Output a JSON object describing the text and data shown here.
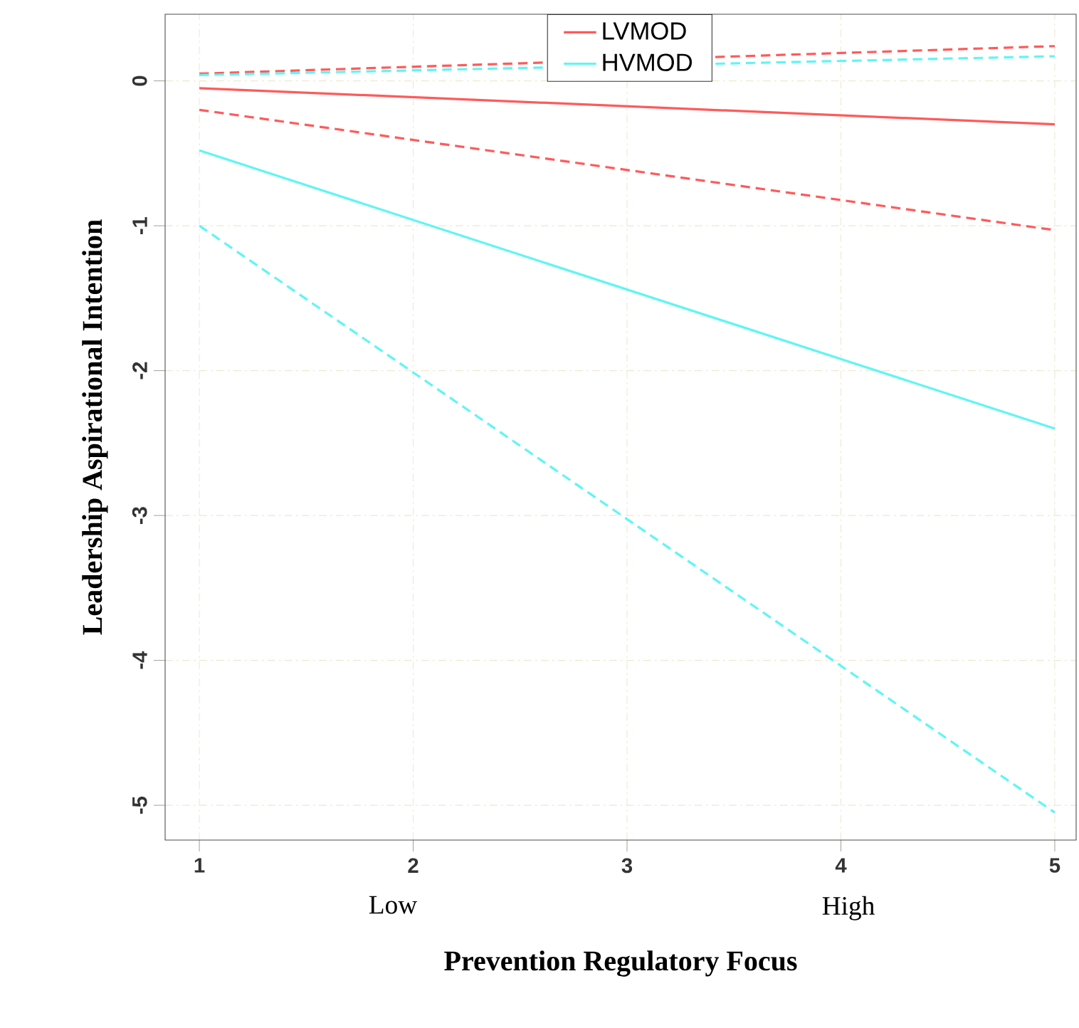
{
  "chart_data": {
    "type": "line",
    "xlabel": "Prevention Regulatory Focus",
    "ylabel": "Leadership Aspirational Intention",
    "x": [
      1,
      5
    ],
    "series": [
      {
        "name": "LVMOD",
        "color": "#ff5a5a",
        "values": [
          -0.05,
          -0.3
        ]
      },
      {
        "name": "HVMOD",
        "color": "#5ff5f5",
        "values": [
          -0.48,
          -2.4
        ]
      },
      {
        "color": "#ff5a5a",
        "line_style": "dashed",
        "values": [
          0.05,
          0.24
        ]
      },
      {
        "color": "#ff5a5a",
        "line_style": "dashed",
        "values": [
          -0.2,
          -1.03
        ]
      },
      {
        "color": "#5ff5f5",
        "line_style": "dashed",
        "values": [
          0.04,
          0.17
        ]
      },
      {
        "color": "#5ff5f5",
        "line_style": "dashed",
        "values": [
          -1.0,
          -5.05
        ]
      }
    ],
    "xlim": [
      0.84,
      5.1
    ],
    "ylim": [
      -5.24,
      0.46
    ],
    "xticks": [
      1,
      2,
      3,
      4,
      5
    ],
    "yticks": [
      -5,
      -4,
      -3,
      -2,
      -1,
      0
    ],
    "annotations": [
      "Low",
      "High"
    ],
    "grid": true,
    "legend": "top",
    "line_style": "solid"
  }
}
